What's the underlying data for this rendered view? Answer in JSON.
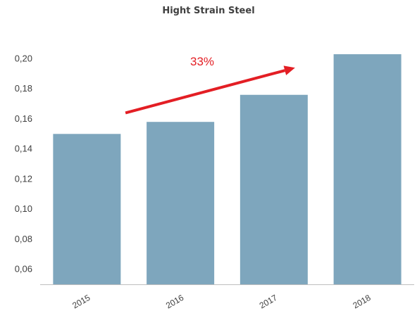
{
  "chart_data": {
    "type": "bar",
    "title": "Hight Strain Steel",
    "categories": [
      "2015",
      "2016",
      "2017",
      "2018"
    ],
    "values": [
      0.15,
      0.158,
      0.176,
      0.203
    ],
    "ylim": [
      0.05,
      0.2
    ],
    "yticks": [
      "0,06",
      "0,08",
      "0,10",
      "0,12",
      "0,14",
      "0,16",
      "0,18",
      "0,20"
    ],
    "ytick_values": [
      0.06,
      0.08,
      0.1,
      0.12,
      0.14,
      0.16,
      0.18,
      0.2
    ],
    "xlabel": "",
    "ylabel": "",
    "grid": false,
    "legend": "none",
    "annotation": {
      "text": "33%",
      "kind": "arrow",
      "from": {
        "category": "2016",
        "value": 0.164
      },
      "to": {
        "category": "2017",
        "value": 0.194
      }
    },
    "colors": {
      "bar": "#7ea6bd",
      "axis": "#bfbfbf",
      "tick_text": "#404040",
      "annotation": "#e31e24"
    }
  }
}
